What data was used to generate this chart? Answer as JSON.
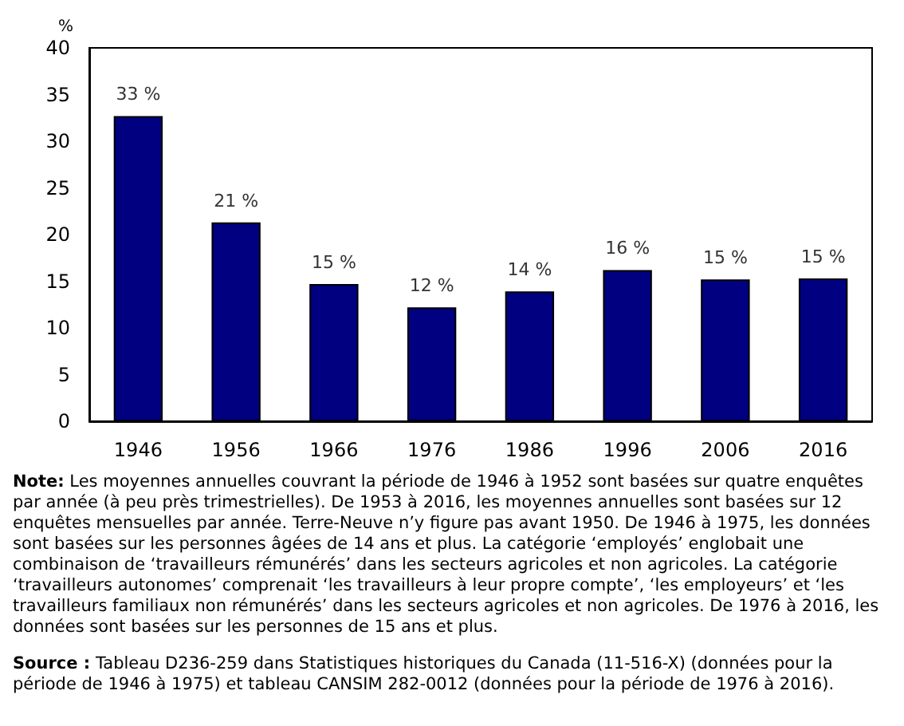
{
  "chart_data": {
    "type": "bar",
    "ylabel": "%",
    "categories": [
      "1946",
      "1956",
      "1966",
      "1976",
      "1986",
      "1996",
      "2006",
      "2016"
    ],
    "values": [
      32.7,
      21.3,
      14.7,
      12.2,
      13.9,
      16.2,
      15.2,
      15.3
    ],
    "value_labels": [
      "33 %",
      "21 %",
      "15 %",
      "12 %",
      "14 %",
      "16 %",
      "15 %",
      "15 %"
    ],
    "color": "#000080",
    "ylim": [
      0,
      40
    ],
    "yticks": [
      0,
      5,
      10,
      15,
      20,
      25,
      30,
      35,
      40
    ],
    "grid": false,
    "annotations": [
      "Note: Les moyennes annuelles couvrant la période de 1946 à 1952 sont basées sur quatre enquêtes par année (à peu près trimestrielles). De 1953 à 2016, les moyennes annuelles sont basées sur 12 enquêtes mensuelles par année. Terre-Neuve n’y figure pas avant 1950. De 1946 à 1975, les données sont basées sur les personnes âgées de 14 ans et plus. La catégorie ‘employés’ englobait une combinaison de ‘travailleurs rémunérés’ dans les secteurs agricoles et non agricoles. La catégorie ‘travailleurs autonomes’ comprenait ‘les travailleurs à leur propre compte’, ‘les employeurs’ et ‘les travailleurs familiaux non rémunérés’ dans les secteurs agricoles et non agricoles. De 1976 à 2016, les données sont basées sur les personnes de 15 ans et plus.",
      "Source : Tableau D236-259 dans Statistiques historiques du Canada (11-516-X) (données pour la période de 1946 à 1975) et tableau CANSIM 282-0012 (données pour la période de 1976 à 2016)."
    ]
  }
}
